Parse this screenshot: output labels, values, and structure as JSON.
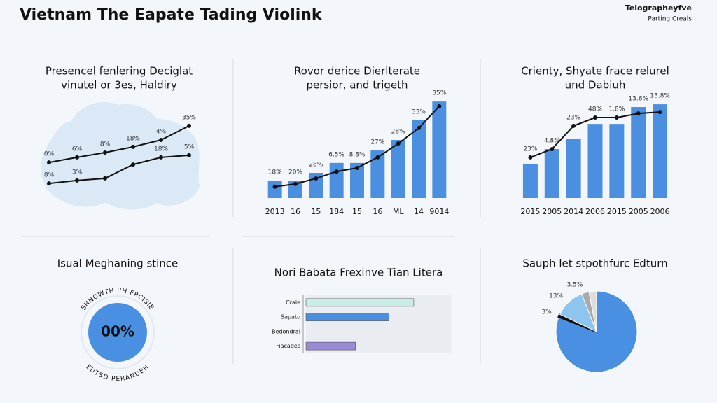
{
  "header": {
    "title": "Vietnam The Eapate Tading Violink",
    "brand": "Telographeyfve",
    "tagline": "Parting Creals"
  },
  "chart_data": [
    {
      "type": "line",
      "title": [
        "Presencel fenlering Deciglat",
        "vinutel or 3es, Haldiry"
      ],
      "ylim": [
        0,
        40
      ],
      "series": [
        {
          "color": "#111111",
          "values": [
            19.3,
            21.7,
            24,
            26.7,
            30,
            36.7
          ],
          "annotations": [
            "0%",
            "6%",
            "8%",
            "18%",
            "4%",
            "35%"
          ]
        },
        {
          "color": "#111111",
          "values": [
            9.3,
            10.7,
            11.7,
            18.3,
            21.7,
            22.7
          ],
          "annotations": [
            "8%",
            "3%",
            "18%",
            "5%"
          ]
        }
      ]
    },
    {
      "type": "bar-line",
      "title": [
        "Rovor derice Dierlterate",
        "persior, and trigeth"
      ],
      "ylim": [
        0,
        40
      ],
      "categories": [
        "2013",
        "16",
        "15",
        "184",
        "15",
        "16",
        "ML",
        "14",
        "9014"
      ],
      "annotations": [
        "18%",
        "20%",
        "28%",
        "6.5%",
        "8.8%",
        "27%",
        "28%",
        "33%",
        "35%"
      ],
      "series": [
        {
          "type": "bar",
          "color": "#4a8fe0",
          "values": [
            6.3,
            6.3,
            9.1,
            12.7,
            12.7,
            17.2,
            21,
            28.1,
            34.9
          ]
        },
        {
          "type": "line",
          "color": "#111111",
          "values": [
            4.1,
            5.1,
            7.1,
            9.6,
            10.9,
            14.7,
            19.7,
            25.3,
            33.2
          ]
        }
      ]
    },
    {
      "type": "bar-line",
      "title": [
        "Crienty, Shyate frace relurel",
        "und Dabiuh"
      ],
      "ylim": [
        0,
        40
      ],
      "categories": [
        "2015",
        "2005",
        "2014",
        "2006",
        "2015",
        "2005",
        "2006"
      ],
      "annotations": [
        "23%",
        "4.8%",
        "23%",
        "48%",
        "1.8%",
        "13.6%",
        "13.8%"
      ],
      "series": [
        {
          "type": "bar",
          "color": "#4a8fe0",
          "values": [
            12.2,
            17.7,
            21.5,
            26.8,
            26.8,
            32.9,
            33.9
          ]
        },
        {
          "type": "line",
          "color": "#111111",
          "values": [
            14.7,
            17.7,
            26.1,
            29.1,
            29.1,
            30.6,
            31.1
          ]
        }
      ]
    },
    {
      "type": "gauge",
      "title": [
        "Isual Meghaning stince"
      ],
      "label": "00%",
      "color": "#4a90e2",
      "ring_text": [
        "SHNOWTH I'H FRCISIE",
        "EUTSD PERANDEH"
      ]
    },
    {
      "type": "hbar",
      "title": [
        "Nori Babata Frexinve Tian Litera"
      ],
      "xlim": [
        0,
        100
      ],
      "categories": [
        "Crale",
        "Sapato",
        "Bedondral",
        "Fiacades"
      ],
      "values": [
        74,
        57,
        null,
        34
      ],
      "colors": [
        "#c8ece6",
        "#4a8fe0",
        "#4a8fe0",
        "#9a8ad8"
      ]
    },
    {
      "type": "pie",
      "title": [
        "Sauph let stpothfurc Edturn"
      ],
      "values": [
        81,
        1,
        12,
        3,
        3
      ],
      "colors": [
        "#4a90e2",
        "#111111",
        "#8ec5ee",
        "#aaaaaa",
        "#dddddd"
      ],
      "annotations": [
        "3%",
        "13%",
        "3.5%"
      ]
    }
  ]
}
